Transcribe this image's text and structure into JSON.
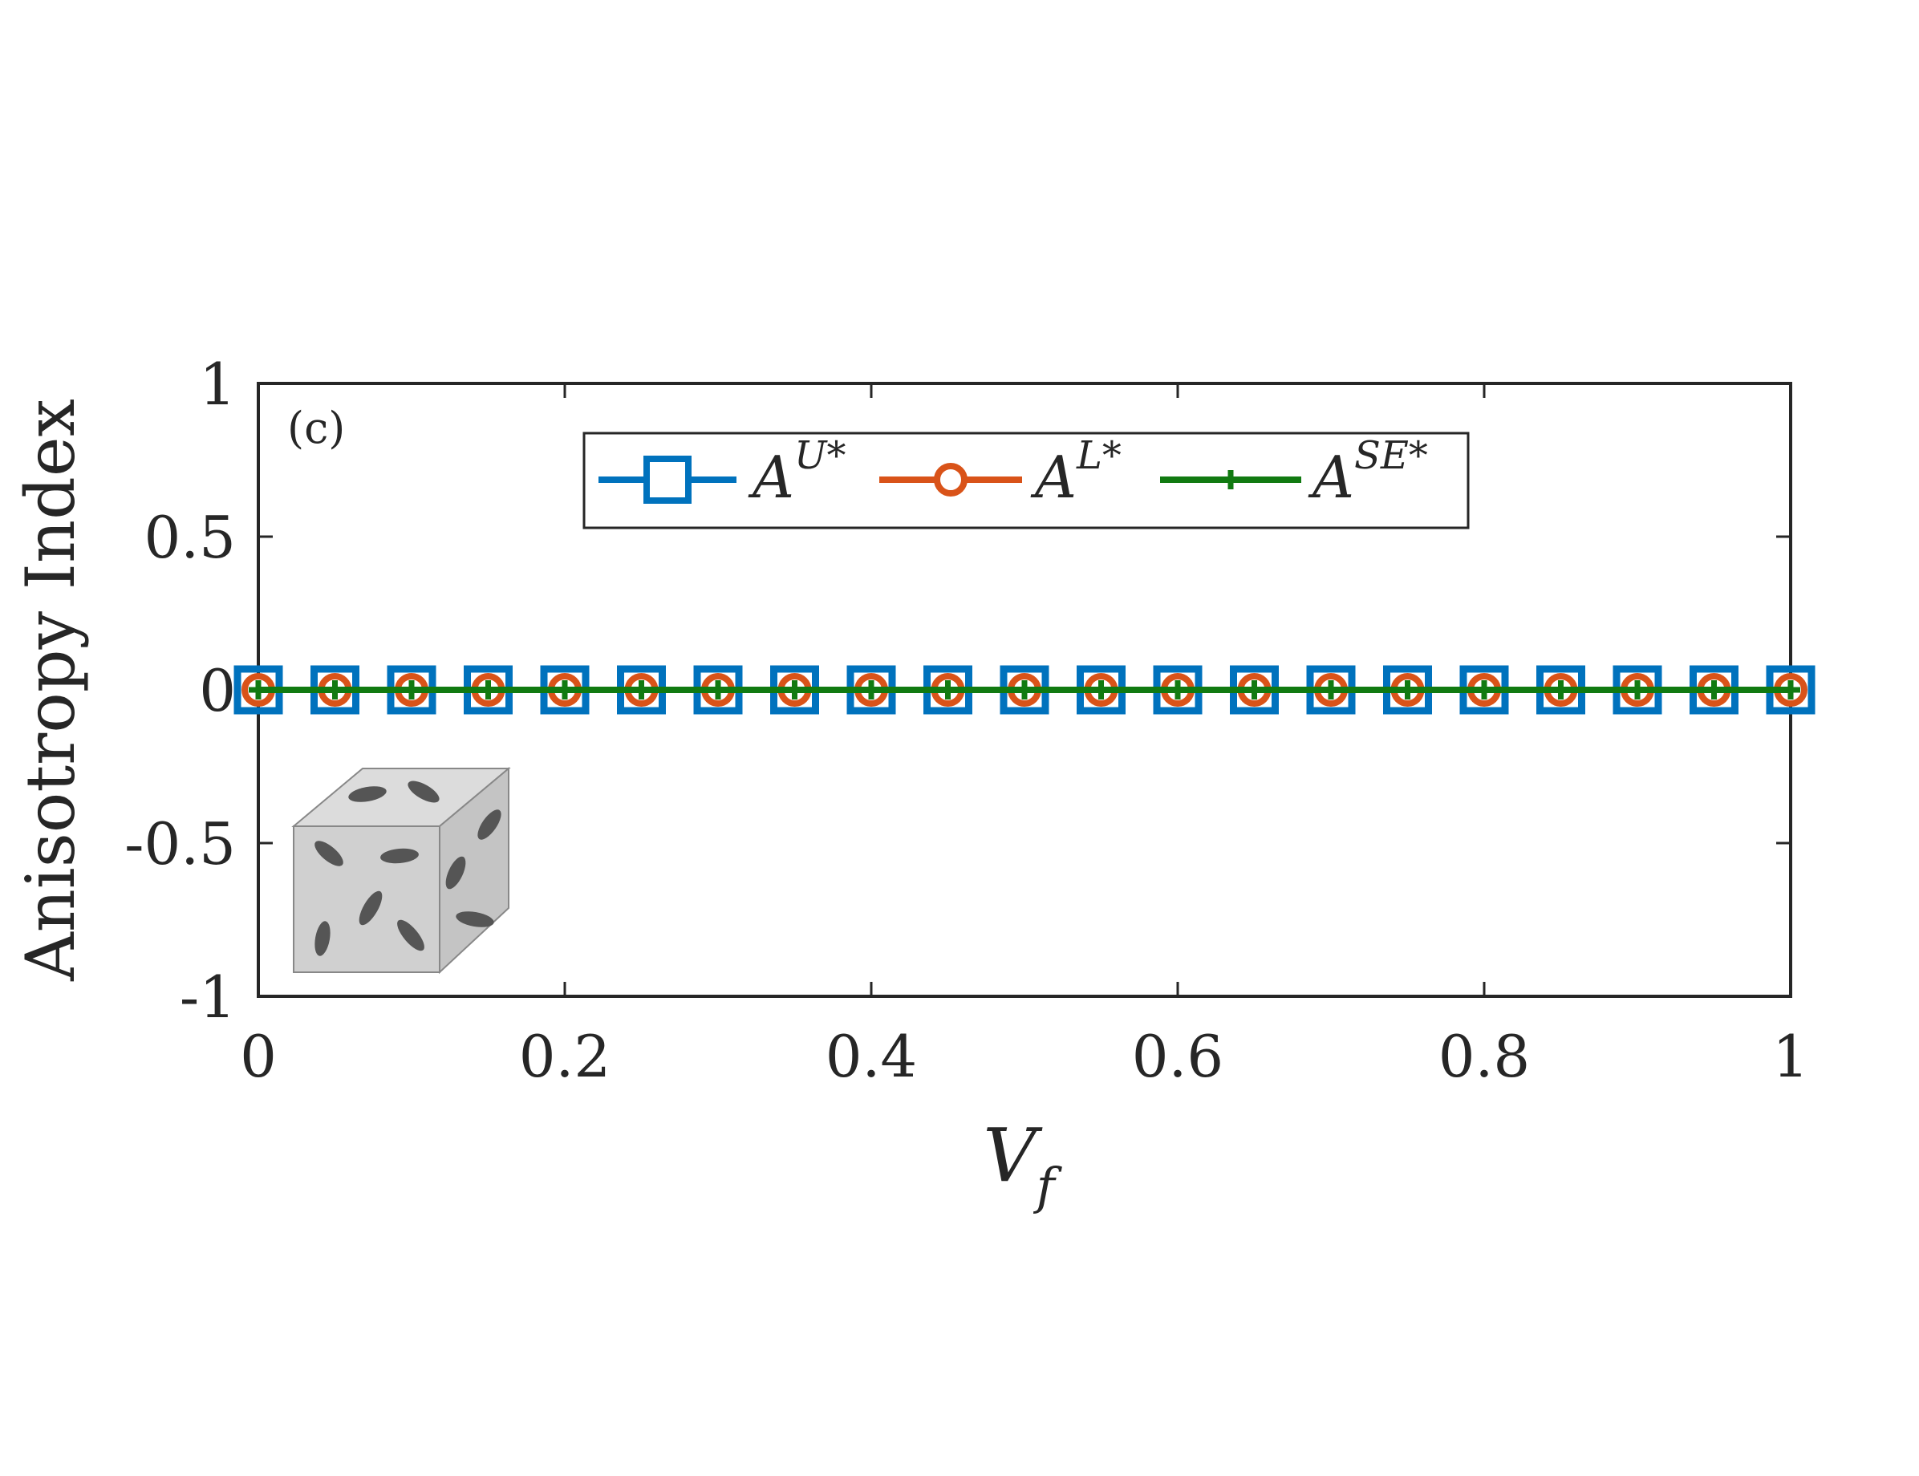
{
  "chart_data": {
    "type": "line",
    "panel_label": "(c)",
    "xlabel": {
      "base": "V",
      "sub": "f"
    },
    "ylabel": "Anisotropy Index",
    "xlim": [
      0,
      1
    ],
    "ylim": [
      -1,
      1
    ],
    "x_ticks": [
      0,
      0.2,
      0.4,
      0.6,
      0.8,
      1
    ],
    "x_tick_labels": [
      "0",
      "0.2",
      "0.4",
      "0.6",
      "0.8",
      "1"
    ],
    "y_ticks": [
      1,
      0.5,
      0,
      -0.5,
      -1
    ],
    "y_tick_labels": [
      "1",
      "0.5",
      "0",
      "-0.5",
      "-1"
    ],
    "grid": false,
    "legend_position": "top-center",
    "x": [
      0,
      0.05,
      0.1,
      0.15,
      0.2,
      0.25,
      0.3,
      0.35,
      0.4,
      0.45,
      0.5,
      0.55,
      0.6,
      0.65,
      0.7,
      0.75,
      0.8,
      0.85,
      0.9,
      0.95,
      1
    ],
    "series": [
      {
        "base": "A",
        "sup": "U*",
        "color": "#0072BD",
        "marker": "square",
        "values": [
          0,
          0,
          0,
          0,
          0,
          0,
          0,
          0,
          0,
          0,
          0,
          0,
          0,
          0,
          0,
          0,
          0,
          0,
          0,
          0,
          0
        ]
      },
      {
        "base": "A",
        "sup": "L*",
        "color": "#D95319",
        "marker": "circle",
        "values": [
          0,
          0,
          0,
          0,
          0,
          0,
          0,
          0,
          0,
          0,
          0,
          0,
          0,
          0,
          0,
          0,
          0,
          0,
          0,
          0,
          0
        ]
      },
      {
        "base": "A",
        "sup": "SE*",
        "color": "#117A11",
        "marker": "plus",
        "values": [
          0,
          0,
          0,
          0,
          0,
          0,
          0,
          0,
          0,
          0,
          0,
          0,
          0,
          0,
          0,
          0,
          0,
          0,
          0,
          0,
          0
        ]
      }
    ]
  }
}
